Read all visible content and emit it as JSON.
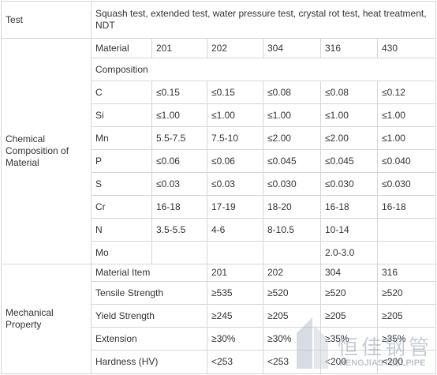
{
  "test": {
    "label": "Test",
    "value": "Squash test, extended test, water pressure test, crystal rot test, heat treatment, NDT"
  },
  "chemical": {
    "label": "Chemical Composition of Material",
    "header": [
      "Material",
      "201",
      "202",
      "304",
      "316",
      "430"
    ],
    "composition": "Composition",
    "rows": [
      [
        "C",
        "≤0.15",
        "≤0.15",
        "≤0.08",
        "≤0.08",
        "≤0.12"
      ],
      [
        "Si",
        "≤1.00",
        "≤1.00",
        "≤1.00",
        "≤1.00",
        "≤1.00"
      ],
      [
        "Mn",
        "5.5-7.5",
        "7.5-10",
        "≤2.00",
        "≤2.00",
        "≤1.00"
      ],
      [
        "P",
        "≤0.06",
        "≤0.06",
        "≤0.045",
        "≤0.045",
        "≤0.040"
      ],
      [
        "S",
        "≤0.03",
        "≤0.03",
        "≤0.030",
        "≤0.030",
        "≤0.030"
      ],
      [
        "Cr",
        "16-18",
        "17-19",
        "18-20",
        "16-18",
        "16-18"
      ],
      [
        "N",
        "3.5-5.5",
        "4-6",
        "8-10.5",
        "10-14",
        null
      ],
      [
        "Mo",
        null,
        null,
        null,
        "2.0-3.0",
        null
      ]
    ]
  },
  "mechanical": {
    "label": "Mechanical Property",
    "header": [
      "Material Item",
      "201",
      "202",
      "304",
      "316"
    ],
    "rows": [
      [
        "Tensile Strength",
        "≥535",
        "≥520",
        "≥520",
        "≥520"
      ],
      [
        "Yield Strength",
        "≥245",
        "≥205",
        "≥205",
        "≥205"
      ],
      [
        "Extension",
        "≥30%",
        "≥30%",
        "≥35%",
        "≥35%"
      ],
      [
        "Hardness (HV)",
        "<253",
        "<253",
        "<200",
        "<200"
      ]
    ]
  },
  "watermark": {
    "brand": "恒佳钢管",
    "latin": "HENGJIASTEELPIPE"
  }
}
